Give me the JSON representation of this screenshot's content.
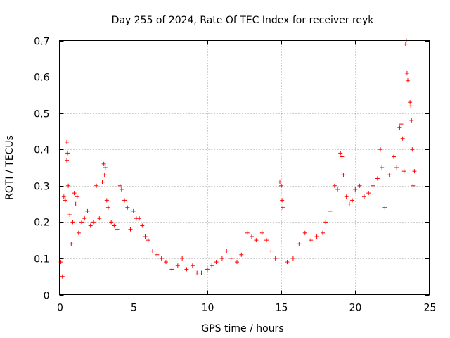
{
  "chart_data": {
    "type": "scatter",
    "title": "Day 255 of 2024, Rate Of TEC Index for receiver reyk",
    "xlabel": "GPS time / hours",
    "ylabel": "ROTI / TECUs",
    "xlim": [
      0,
      25
    ],
    "ylim": [
      0,
      0.7
    ],
    "xticks": [
      0,
      5,
      10,
      15,
      20,
      25
    ],
    "yticks": [
      0,
      0.1,
      0.2,
      0.3,
      0.4,
      0.5,
      0.6,
      0.7
    ],
    "grid": true,
    "marker": "+",
    "color": "#ff0000",
    "series": [
      {
        "name": "ROTI",
        "points": [
          [
            0.1,
            0.09
          ],
          [
            0.2,
            0.05
          ],
          [
            0.3,
            0.27
          ],
          [
            0.4,
            0.26
          ],
          [
            0.5,
            0.42
          ],
          [
            0.5,
            0.37
          ],
          [
            0.55,
            0.39
          ],
          [
            0.6,
            0.3
          ],
          [
            0.7,
            0.22
          ],
          [
            0.8,
            0.14
          ],
          [
            0.9,
            0.2
          ],
          [
            1.0,
            0.28
          ],
          [
            1.1,
            0.25
          ],
          [
            1.2,
            0.27
          ],
          [
            1.3,
            0.17
          ],
          [
            1.5,
            0.2
          ],
          [
            1.7,
            0.21
          ],
          [
            1.9,
            0.23
          ],
          [
            2.1,
            0.19
          ],
          [
            2.3,
            0.2
          ],
          [
            2.5,
            0.3
          ],
          [
            2.7,
            0.21
          ],
          [
            2.9,
            0.31
          ],
          [
            3.0,
            0.36
          ],
          [
            3.05,
            0.33
          ],
          [
            3.1,
            0.35
          ],
          [
            3.2,
            0.26
          ],
          [
            3.3,
            0.24
          ],
          [
            3.5,
            0.2
          ],
          [
            3.7,
            0.19
          ],
          [
            3.9,
            0.18
          ],
          [
            4.1,
            0.3
          ],
          [
            4.2,
            0.29
          ],
          [
            4.4,
            0.26
          ],
          [
            4.6,
            0.24
          ],
          [
            4.8,
            0.18
          ],
          [
            5.0,
            0.23
          ],
          [
            5.2,
            0.21
          ],
          [
            5.4,
            0.21
          ],
          [
            5.6,
            0.19
          ],
          [
            5.8,
            0.16
          ],
          [
            6.0,
            0.15
          ],
          [
            6.3,
            0.12
          ],
          [
            6.6,
            0.11
          ],
          [
            6.9,
            0.1
          ],
          [
            7.2,
            0.09
          ],
          [
            7.6,
            0.07
          ],
          [
            8.0,
            0.08
          ],
          [
            8.3,
            0.1
          ],
          [
            8.6,
            0.07
          ],
          [
            9.0,
            0.08
          ],
          [
            9.3,
            0.06
          ],
          [
            9.6,
            0.06
          ],
          [
            10.0,
            0.07
          ],
          [
            10.3,
            0.08
          ],
          [
            10.6,
            0.09
          ],
          [
            11.0,
            0.1
          ],
          [
            11.3,
            0.12
          ],
          [
            11.6,
            0.1
          ],
          [
            12.0,
            0.09
          ],
          [
            12.3,
            0.11
          ],
          [
            12.7,
            0.17
          ],
          [
            13.0,
            0.16
          ],
          [
            13.3,
            0.15
          ],
          [
            13.7,
            0.17
          ],
          [
            14.0,
            0.15
          ],
          [
            14.3,
            0.12
          ],
          [
            14.6,
            0.1
          ],
          [
            14.9,
            0.31
          ],
          [
            15.0,
            0.3
          ],
          [
            15.05,
            0.26
          ],
          [
            15.1,
            0.24
          ],
          [
            15.4,
            0.09
          ],
          [
            15.8,
            0.1
          ],
          [
            16.2,
            0.14
          ],
          [
            16.6,
            0.17
          ],
          [
            17.0,
            0.15
          ],
          [
            17.4,
            0.16
          ],
          [
            17.8,
            0.17
          ],
          [
            18.0,
            0.2
          ],
          [
            18.3,
            0.23
          ],
          [
            18.6,
            0.3
          ],
          [
            18.8,
            0.29
          ],
          [
            19.0,
            0.39
          ],
          [
            19.1,
            0.38
          ],
          [
            19.2,
            0.33
          ],
          [
            19.4,
            0.27
          ],
          [
            19.6,
            0.25
          ],
          [
            19.8,
            0.26
          ],
          [
            20.0,
            0.29
          ],
          [
            20.3,
            0.3
          ],
          [
            20.6,
            0.27
          ],
          [
            20.9,
            0.28
          ],
          [
            21.2,
            0.3
          ],
          [
            21.5,
            0.32
          ],
          [
            21.7,
            0.4
          ],
          [
            21.8,
            0.35
          ],
          [
            22.0,
            0.24
          ],
          [
            22.3,
            0.33
          ],
          [
            22.6,
            0.38
          ],
          [
            22.8,
            0.35
          ],
          [
            23.0,
            0.46
          ],
          [
            23.1,
            0.47
          ],
          [
            23.2,
            0.43
          ],
          [
            23.3,
            0.34
          ],
          [
            23.4,
            0.69
          ],
          [
            23.45,
            0.7
          ],
          [
            23.5,
            0.61
          ],
          [
            23.55,
            0.59
          ],
          [
            23.7,
            0.53
          ],
          [
            23.75,
            0.52
          ],
          [
            23.8,
            0.48
          ],
          [
            23.85,
            0.4
          ],
          [
            23.9,
            0.3
          ],
          [
            24.0,
            0.34
          ]
        ]
      }
    ]
  }
}
